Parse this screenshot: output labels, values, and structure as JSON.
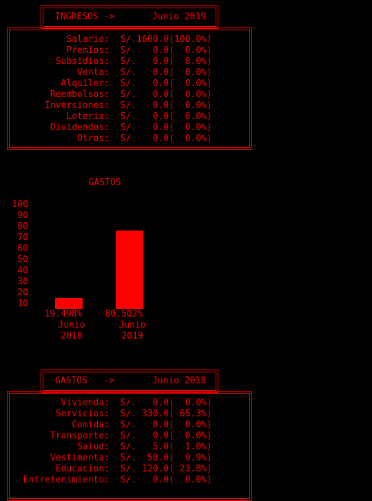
{
  "ingresos": {
    "header": "INGRESOS ->       Junio 2019",
    "rows": [
      {
        "label": "Salario:",
        "value": "S/.1600.0(100.0%)"
      },
      {
        "label": "Premios:",
        "value": "S/.   0.0(  0.0%)"
      },
      {
        "label": "Subsidios:",
        "value": "S/.   0.0(  0.0%)"
      },
      {
        "label": "Venta:",
        "value": "S/.   0.0(  0.0%)"
      },
      {
        "label": "Alquiler:",
        "value": "S/.   0.0(  0.0%)"
      },
      {
        "label": "Reembolsos:",
        "value": "S/.   0.0(  0.0%)"
      },
      {
        "label": "Inversiones:",
        "value": "S/.   0.0(  0.0%)"
      },
      {
        "label": "Loteria:",
        "value": "S/.   0.0(  0.0%)"
      },
      {
        "label": "Dividendos:",
        "value": "S/.   0.0(  0.0%)"
      },
      {
        "label": "Otros:",
        "value": "S/.   0.0(  0.0%)"
      }
    ]
  },
  "chart_data": {
    "type": "bar",
    "title": "GASTOS",
    "y_ticks": [
      "100",
      "90",
      "80",
      "70",
      "60",
      "50",
      "40",
      "30",
      "20",
      "10"
    ],
    "ylim": [
      0,
      100
    ],
    "categories": [
      "Junio 2018",
      "Junio 2019"
    ],
    "category_lines": [
      [
        "Junio",
        "2018"
      ],
      [
        "Junio",
        "2019"
      ]
    ],
    "values": [
      19.498,
      80.502
    ],
    "value_labels": [
      "19.498%",
      "80.502%"
    ],
    "bar_color": "#ff0000"
  },
  "gastos": {
    "header": "GASTOS   ->       Junio 2018",
    "rows": [
      {
        "label": "Vivienda:",
        "value": "S/.   0.0(  0.0%)"
      },
      {
        "label": "Servicios:",
        "value": "S/. 330.0( 65.3%)"
      },
      {
        "label": "Comida:",
        "value": "S/.   0.0(  0.0%)"
      },
      {
        "label": "Transporte:",
        "value": "S/.   0.0(  0.0%)"
      },
      {
        "label": "Salud:",
        "value": "S/.   5.0(  1.0%)"
      },
      {
        "label": "Vestimenta:",
        "value": "S/.  50.0(  9.9%)"
      },
      {
        "label": "Educacion:",
        "value": "S/. 120.0( 23.8%)"
      },
      {
        "label": "Entretenimiento:",
        "value": "S/.   0.0(  0.0%)"
      }
    ]
  },
  "colors": {
    "background": "#000000",
    "text": "#ff0000",
    "bar": "#ff0000"
  }
}
